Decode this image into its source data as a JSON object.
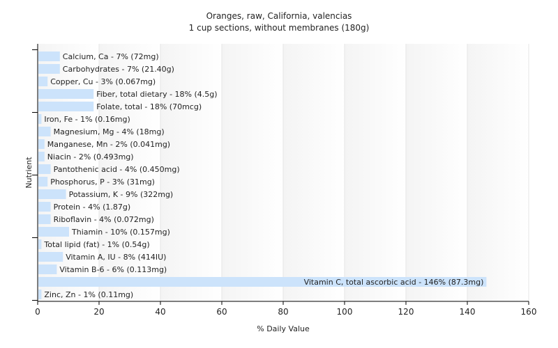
{
  "chart_data": {
    "type": "bar",
    "orientation": "horizontal",
    "title": "Oranges, raw, California, valencias",
    "subtitle": "1 cup sections, without membranes (180g)",
    "xlabel": "% Daily Value",
    "ylabel": "Nutrient",
    "xlim": [
      0,
      160
    ],
    "xticks": [
      0,
      20,
      40,
      60,
      80,
      100,
      120,
      140,
      160
    ],
    "grid": true,
    "bar_color": "#cce3fb",
    "bars": [
      {
        "category": "Calcium, Ca",
        "value": 7,
        "label": "Calcium, Ca - 7% (72mg)"
      },
      {
        "category": "Carbohydrates",
        "value": 7,
        "label": "Carbohydrates - 7% (21.40g)"
      },
      {
        "category": "Copper, Cu",
        "value": 3,
        "label": "Copper, Cu - 3% (0.067mg)"
      },
      {
        "category": "Fiber, total dietary",
        "value": 18,
        "label": "Fiber, total dietary - 18% (4.5g)"
      },
      {
        "category": "Folate, total",
        "value": 18,
        "label": "Folate, total - 18% (70mcg)"
      },
      {
        "category": "Iron, Fe",
        "value": 1,
        "label": "Iron, Fe - 1% (0.16mg)"
      },
      {
        "category": "Magnesium, Mg",
        "value": 4,
        "label": "Magnesium, Mg - 4% (18mg)"
      },
      {
        "category": "Manganese, Mn",
        "value": 2,
        "label": "Manganese, Mn - 2% (0.041mg)"
      },
      {
        "category": "Niacin",
        "value": 2,
        "label": "Niacin - 2% (0.493mg)"
      },
      {
        "category": "Pantothenic acid",
        "value": 4,
        "label": "Pantothenic acid - 4% (0.450mg)"
      },
      {
        "category": "Phosphorus, P",
        "value": 3,
        "label": "Phosphorus, P - 3% (31mg)"
      },
      {
        "category": "Potassium, K",
        "value": 9,
        "label": "Potassium, K - 9% (322mg)"
      },
      {
        "category": "Protein",
        "value": 4,
        "label": "Protein - 4% (1.87g)"
      },
      {
        "category": "Riboflavin",
        "value": 4,
        "label": "Riboflavin - 4% (0.072mg)"
      },
      {
        "category": "Thiamin",
        "value": 10,
        "label": "Thiamin - 10% (0.157mg)"
      },
      {
        "category": "Total lipid (fat)",
        "value": 1,
        "label": "Total lipid (fat) - 1% (0.54g)"
      },
      {
        "category": "Vitamin A, IU",
        "value": 8,
        "label": "Vitamin A, IU - 8% (414IU)"
      },
      {
        "category": "Vitamin B-6",
        "value": 6,
        "label": "Vitamin B-6 - 6% (0.113mg)"
      },
      {
        "category": "Vitamin C, total ascorbic acid",
        "value": 146,
        "label": "Vitamin C, total ascorbic acid - 146% (87.3mg)"
      },
      {
        "category": "Zinc, Zn",
        "value": 1,
        "label": "Zinc, Zn - 1% (0.11mg)"
      }
    ]
  }
}
